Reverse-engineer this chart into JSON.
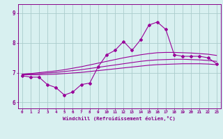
{
  "xlabel": "Windchill (Refroidissement éolien,°C)",
  "x": [
    0,
    1,
    2,
    3,
    4,
    5,
    6,
    7,
    8,
    9,
    10,
    11,
    12,
    13,
    14,
    15,
    16,
    17,
    18,
    19,
    20,
    21,
    22,
    23
  ],
  "line_main": [
    6.9,
    6.85,
    6.85,
    6.6,
    6.5,
    6.25,
    6.35,
    6.6,
    6.65,
    7.2,
    7.6,
    7.75,
    8.05,
    7.75,
    8.1,
    8.6,
    8.7,
    8.45,
    7.6,
    7.55,
    7.55,
    7.55,
    7.5,
    7.3
  ],
  "line_upper": [
    6.95,
    6.97,
    7.0,
    7.03,
    7.06,
    7.1,
    7.15,
    7.2,
    7.26,
    7.32,
    7.38,
    7.44,
    7.5,
    7.55,
    7.6,
    7.64,
    7.67,
    7.68,
    7.68,
    7.67,
    7.66,
    7.64,
    7.62,
    7.58
  ],
  "line_mid": [
    6.95,
    6.96,
    6.97,
    6.99,
    7.01,
    7.04,
    7.07,
    7.1,
    7.14,
    7.18,
    7.22,
    7.26,
    7.3,
    7.34,
    7.38,
    7.41,
    7.43,
    7.44,
    7.45,
    7.45,
    7.44,
    7.43,
    7.41,
    7.38
  ],
  "line_lower": [
    6.93,
    6.93,
    6.93,
    6.94,
    6.95,
    6.97,
    6.99,
    7.01,
    7.04,
    7.07,
    7.1,
    7.13,
    7.16,
    7.19,
    7.22,
    7.25,
    7.27,
    7.28,
    7.29,
    7.3,
    7.3,
    7.3,
    7.29,
    7.27
  ],
  "line_color": "#990099",
  "bg_color": "#d8f0f0",
  "grid_color": "#aacccc",
  "ylim": [
    5.8,
    9.3
  ],
  "yticks": [
    6,
    7,
    8,
    9
  ],
  "text_color": "#880088"
}
